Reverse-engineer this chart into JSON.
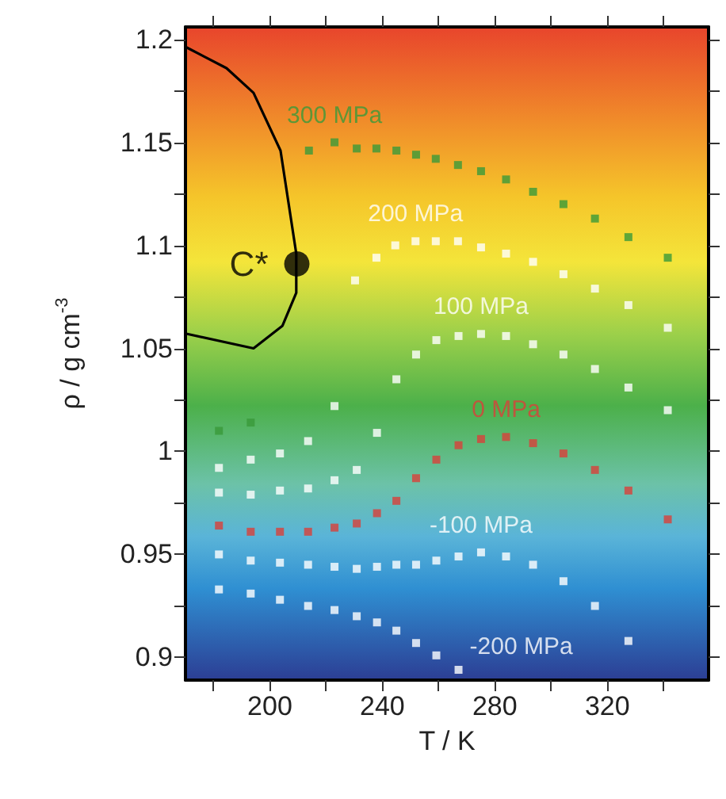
{
  "chart_data": {
    "type": "scatter",
    "xlabel": "T / K",
    "ylabel": "ρ / g cm$^{-3}$",
    "xlim": [
      170,
      356
    ],
    "ylim": [
      0.889,
      1.206
    ],
    "xticks": [
      {
        "value": 180,
        "label": null
      },
      200,
      {
        "value": 220,
        "label": null
      },
      240,
      {
        "value": 260,
        "label": null
      },
      280,
      {
        "value": 300,
        "label": null
      },
      320,
      {
        "value": 340,
        "label": null
      }
    ],
    "yticks": [
      {
        "value": 0.9,
        "label": "0.9"
      },
      {
        "value": 0.925,
        "label": null
      },
      {
        "value": 0.95,
        "label": "0.95"
      },
      {
        "value": 0.975,
        "label": null
      },
      {
        "value": 1,
        "label": "1"
      },
      {
        "value": 1.025,
        "label": null
      },
      {
        "value": 1.05,
        "label": "1.05"
      },
      {
        "value": 1.075,
        "label": null
      },
      {
        "value": 1.1,
        "label": "1.1"
      },
      {
        "value": 1.125,
        "label": null
      },
      {
        "value": 1.15,
        "label": "1.15"
      },
      {
        "value": 1.175,
        "label": null
      },
      {
        "value": 1.2,
        "label": "1.2"
      }
    ],
    "series": [
      {
        "name": "300 MPa",
        "marker": "square",
        "color": "#3a9a3a",
        "x": [
          181.9,
          193.2,
          213.9,
          223.0,
          230.9,
          237.9,
          245.0,
          252.0,
          259.0,
          266.9,
          275.1,
          284.0,
          293.6,
          304.4,
          315.6,
          327.5,
          341.5
        ],
        "values": [
          1.01,
          1.014,
          1.146,
          1.15,
          1.147,
          1.147,
          1.146,
          1.144,
          1.142,
          1.139,
          1.136,
          1.132,
          1.126,
          1.12,
          1.113,
          1.104,
          1.094
        ]
      },
      {
        "name": "200 MPa",
        "marker": "square",
        "color": "#ffffff",
        "x": [
          181.9,
          193.2,
          203.6,
          213.6,
          223.0,
          230.3,
          237.9,
          244.6,
          251.8,
          259.0,
          266.9,
          275.1,
          284.0,
          293.6,
          304.4,
          315.6,
          327.5,
          341.5
        ],
        "values": [
          0.992,
          0.996,
          0.999,
          1.005,
          1.022,
          1.083,
          1.094,
          1.1,
          1.102,
          1.102,
          1.102,
          1.099,
          1.096,
          1.092,
          1.086,
          1.079,
          1.071,
          1.06
        ]
      },
      {
        "name": "100 MPa",
        "marker": "square",
        "color": "#ffffff",
        "x": [
          181.9,
          193.2,
          203.6,
          213.6,
          223.0,
          230.9,
          238.1,
          245.0,
          252.0,
          259.2,
          267.1,
          275.1,
          284.0,
          293.6,
          304.4,
          315.6,
          327.5,
          341.5
        ],
        "values": [
          0.98,
          0.979,
          0.981,
          0.982,
          0.986,
          0.991,
          1.009,
          1.035,
          1.047,
          1.054,
          1.056,
          1.057,
          1.056,
          1.052,
          1.047,
          1.04,
          1.031,
          1.02
        ]
      },
      {
        "name": "0 MPa",
        "marker": "square",
        "color": "#d9403a",
        "x": [
          181.9,
          193.2,
          203.6,
          213.6,
          223.0,
          230.9,
          238.1,
          245.0,
          252.0,
          259.2,
          267.1,
          275.1,
          284.0,
          293.6,
          304.4,
          315.6,
          327.5,
          341.5
        ],
        "values": [
          0.964,
          0.961,
          0.961,
          0.961,
          0.963,
          0.965,
          0.97,
          0.976,
          0.987,
          0.996,
          1.003,
          1.006,
          1.007,
          1.004,
          0.999,
          0.991,
          0.981,
          0.967
        ]
      },
      {
        "name": "-100 MPa",
        "marker": "square",
        "color": "#ffffff",
        "x": [
          181.9,
          193.2,
          203.6,
          213.6,
          223.0,
          230.9,
          238.1,
          245.0,
          252.0,
          259.2,
          267.1,
          275.1,
          284.0,
          293.6,
          304.4,
          315.6,
          327.5
        ],
        "values": [
          0.95,
          0.947,
          0.946,
          0.945,
          0.944,
          0.943,
          0.944,
          0.945,
          0.945,
          0.947,
          0.949,
          0.951,
          0.949,
          0.945,
          0.937,
          0.925,
          0.908
        ]
      },
      {
        "name": "-200 MPa",
        "marker": "square",
        "color": "#ffffff",
        "x": [
          181.9,
          193.2,
          203.6,
          213.6,
          223.0,
          230.9,
          238.1,
          245.0,
          252.0,
          259.2,
          267.1
        ],
        "values": [
          0.933,
          0.931,
          0.928,
          0.925,
          0.923,
          0.92,
          0.917,
          0.913,
          0.907,
          0.901,
          0.894
        ]
      },
      {
        "type": "line",
        "marker": "none",
        "color": "#000000",
        "x": [
          170.6,
          194.2,
          204.5,
          209.4,
          209.4,
          203.8,
          194.2,
          184.6,
          170.5
        ],
        "values": [
          1.057,
          1.05,
          1.061,
          1.077,
          1.096,
          1.146,
          1.174,
          1.186,
          1.196
        ]
      },
      {
        "name": "C*",
        "marker": "circle",
        "color": "#000000",
        "x": [
          209.6
        ],
        "values": [
          1.091
        ]
      }
    ]
  }
}
